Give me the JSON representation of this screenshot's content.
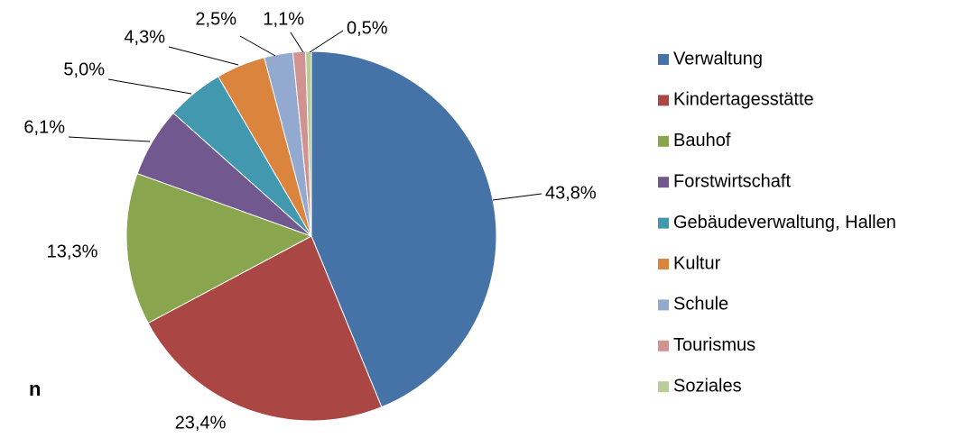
{
  "chart_data": {
    "type": "pie",
    "categories": [
      "Verwaltung",
      "Kindertagesstätte",
      "Bauhof",
      "Forstwirtschaft",
      "Gebäudeverwaltung, Hallen",
      "Kultur",
      "Schule",
      "Tourismus",
      "Soziales"
    ],
    "values": [
      43.8,
      23.4,
      13.3,
      6.1,
      5.0,
      4.3,
      2.5,
      1.1,
      0.5
    ],
    "value_labels": [
      "43,8%",
      "23,4%",
      "13,3%",
      "6,1%",
      "5,0%",
      "4,3%",
      "2,5%",
      "1,1%",
      "0,5%"
    ],
    "colors": [
      "#4572a7",
      "#aa4643",
      "#89a54e",
      "#71588f",
      "#4198af",
      "#db843d",
      "#93a9cf",
      "#d19392",
      "#b9cd96"
    ],
    "legend": "right"
  },
  "cropped_text": "n"
}
